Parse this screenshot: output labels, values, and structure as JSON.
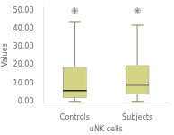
{
  "chart_data": {
    "type": "box",
    "categories": [
      "Controls",
      "Subjects"
    ],
    "boxes": [
      {
        "q1": 2.0,
        "median": 6.0,
        "q3": 19.0,
        "whislo": 0.0,
        "whishi": 44.0,
        "fliers": [
          50.0
        ]
      },
      {
        "q1": 4.0,
        "median": 9.0,
        "q3": 20.0,
        "whislo": 0.0,
        "whishi": 42.0,
        "fliers": [
          50.0
        ]
      }
    ],
    "xlabel": "uNK cells",
    "ylabel": "Values",
    "ylim": [
      -1,
      52
    ],
    "yticks": [
      {
        "value": 0,
        "label": "0.00"
      },
      {
        "value": 10,
        "label": "10.00"
      },
      {
        "value": 20,
        "label": "20.00"
      },
      {
        "value": 30,
        "label": "30.00"
      },
      {
        "value": 40,
        "label": "40.00"
      },
      {
        "value": 50,
        "label": "50.00"
      }
    ],
    "color": "#d4d485",
    "marker": "star",
    "grid": false
  }
}
